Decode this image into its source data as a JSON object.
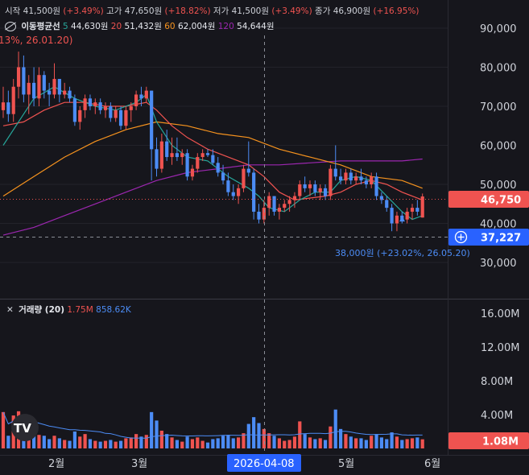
{
  "ohlc_legend": [
    {
      "label": "시작",
      "value": "41,500원",
      "change": "(+3.49%)"
    },
    {
      "label": "고가",
      "value": "47,650원",
      "change": "(+18.82%)"
    },
    {
      "label": "저가",
      "value": "41,500원",
      "change": "(+3.49%)"
    },
    {
      "label": "종가",
      "value": "46,900원",
      "change": "(+16.95%)"
    }
  ],
  "ma_legend": {
    "title": "이동평균선",
    "items": [
      {
        "period": "5",
        "value": "44,630원",
        "color": "#26a69a"
      },
      {
        "period": "20",
        "value": "51,432원",
        "color": "#ef5350"
      },
      {
        "period": "60",
        "value": "62,004원",
        "color": "#f7931e"
      },
      {
        "period": "120",
        "value": "54,644원",
        "color": "#9c27b0"
      }
    ]
  },
  "high_annotation": "13%, 26.01.20)",
  "low_annotation": "38,000원 (+23.02%, 26.05.20)",
  "price_axis": {
    "ticks": [
      "90,000",
      "80,000",
      "70,000",
      "60,000",
      "50,000",
      "40,000",
      "30,000"
    ],
    "min": 20000,
    "max": 95000
  },
  "current_price_tag": {
    "value": "46,750",
    "price": 46750,
    "color": "#ef5350"
  },
  "crosshair_price_tag": {
    "value": "37,227",
    "price": 37227,
    "color": "#2962ff"
  },
  "volume_panel": {
    "title": "거래량 (20)",
    "value1": "1.75M",
    "value2": "858.62K",
    "ticks": [
      "16.00M",
      "12.00M",
      "8.00M",
      "4.00M"
    ],
    "current_tag": "1.08M",
    "max": 17500000
  },
  "time_axis": {
    "labels": [
      "2월",
      "3월",
      "5월",
      "6월"
    ],
    "crosshair_date": "2026-04-08"
  },
  "colors": {
    "up": "#ef5350",
    "down": "#4c8cf5",
    "ma5": "#26a69a",
    "ma20": "#ef5350",
    "ma60": "#f7931e",
    "ma120": "#9c27b0",
    "background": "#16161c",
    "volume_ma": "#4c8cf5"
  },
  "chart_data": {
    "type": "candlestick",
    "price_ylim": [
      20000,
      95000
    ],
    "volume_ylim": [
      0,
      17500000
    ],
    "candles": [
      {
        "o": 69000,
        "h": 75000,
        "l": 67000,
        "c": 71000,
        "v": 4300000
      },
      {
        "o": 71000,
        "h": 74000,
        "l": 66000,
        "c": 68000,
        "v": 1500000
      },
      {
        "o": 68000,
        "h": 77000,
        "l": 66000,
        "c": 75000,
        "v": 3900000
      },
      {
        "o": 75000,
        "h": 84000,
        "l": 72000,
        "c": 80000,
        "v": 4400000
      },
      {
        "o": 80000,
        "h": 83000,
        "l": 71000,
        "c": 73000,
        "v": 3300000
      },
      {
        "o": 73000,
        "h": 78000,
        "l": 68000,
        "c": 76000,
        "v": 3100000
      },
      {
        "o": 76000,
        "h": 80000,
        "l": 70000,
        "c": 72000,
        "v": 1800000
      },
      {
        "o": 72000,
        "h": 80000,
        "l": 70000,
        "c": 78000,
        "v": 1600000
      },
      {
        "o": 78000,
        "h": 79000,
        "l": 72000,
        "c": 74000,
        "v": 1500000
      },
      {
        "o": 74000,
        "h": 76000,
        "l": 70000,
        "c": 73000,
        "v": 1100000
      },
      {
        "o": 73000,
        "h": 81000,
        "l": 72000,
        "c": 77000,
        "v": 1500000
      },
      {
        "o": 77000,
        "h": 77000,
        "l": 71000,
        "c": 73000,
        "v": 1200000
      },
      {
        "o": 73000,
        "h": 76000,
        "l": 72000,
        "c": 74000,
        "v": 1000000
      },
      {
        "o": 74000,
        "h": 75000,
        "l": 71000,
        "c": 72000,
        "v": 900000
      },
      {
        "o": 72000,
        "h": 73000,
        "l": 65000,
        "c": 66000,
        "v": 2000000
      },
      {
        "o": 66000,
        "h": 70000,
        "l": 64000,
        "c": 69000,
        "v": 1400000
      },
      {
        "o": 69000,
        "h": 73000,
        "l": 67000,
        "c": 72000,
        "v": 1700000
      },
      {
        "o": 72000,
        "h": 73000,
        "l": 69000,
        "c": 70000,
        "v": 1100000
      },
      {
        "o": 70000,
        "h": 72000,
        "l": 68000,
        "c": 71000,
        "v": 900000
      },
      {
        "o": 71000,
        "h": 72000,
        "l": 68000,
        "c": 69000,
        "v": 800000
      },
      {
        "o": 69000,
        "h": 71000,
        "l": 67000,
        "c": 70000,
        "v": 900000
      },
      {
        "o": 70000,
        "h": 71000,
        "l": 66000,
        "c": 67000,
        "v": 1000000
      },
      {
        "o": 67000,
        "h": 70000,
        "l": 66000,
        "c": 69000,
        "v": 800000
      },
      {
        "o": 69000,
        "h": 70000,
        "l": 64000,
        "c": 65000,
        "v": 900000
      },
      {
        "o": 65000,
        "h": 70000,
        "l": 64000,
        "c": 69000,
        "v": 1200000
      },
      {
        "o": 69000,
        "h": 71000,
        "l": 66000,
        "c": 70000,
        "v": 1300000
      },
      {
        "o": 70000,
        "h": 74000,
        "l": 69000,
        "c": 73000,
        "v": 1700000
      },
      {
        "o": 73000,
        "h": 75000,
        "l": 70000,
        "c": 72000,
        "v": 1400000
      },
      {
        "o": 72000,
        "h": 75000,
        "l": 71000,
        "c": 74000,
        "v": 1600000
      },
      {
        "o": 74000,
        "h": 74000,
        "l": 51000,
        "c": 59000,
        "v": 4300000
      },
      {
        "o": 59000,
        "h": 62000,
        "l": 52000,
        "c": 54000,
        "v": 3300000
      },
      {
        "o": 54000,
        "h": 63000,
        "l": 53000,
        "c": 61000,
        "v": 2100000
      },
      {
        "o": 61000,
        "h": 64000,
        "l": 56000,
        "c": 57000,
        "v": 1700000
      },
      {
        "o": 57000,
        "h": 62000,
        "l": 55000,
        "c": 58000,
        "v": 1300000
      },
      {
        "o": 58000,
        "h": 62000,
        "l": 56000,
        "c": 57000,
        "v": 1000000
      },
      {
        "o": 57000,
        "h": 59000,
        "l": 55000,
        "c": 58000,
        "v": 800000
      },
      {
        "o": 58000,
        "h": 59000,
        "l": 51000,
        "c": 52000,
        "v": 1400000
      },
      {
        "o": 52000,
        "h": 55000,
        "l": 51000,
        "c": 54000,
        "v": 1100000
      },
      {
        "o": 54000,
        "h": 58000,
        "l": 53000,
        "c": 57000,
        "v": 1300000
      },
      {
        "o": 57000,
        "h": 59000,
        "l": 56000,
        "c": 58000,
        "v": 900000
      },
      {
        "o": 58000,
        "h": 59000,
        "l": 57000,
        "c": 57500,
        "v": 700000
      },
      {
        "o": 57500,
        "h": 59000,
        "l": 55000,
        "c": 55500,
        "v": 1100000
      },
      {
        "o": 55500,
        "h": 57000,
        "l": 52000,
        "c": 53000,
        "v": 1200000
      },
      {
        "o": 53000,
        "h": 55000,
        "l": 50000,
        "c": 51000,
        "v": 1500000
      },
      {
        "o": 51000,
        "h": 53000,
        "l": 47000,
        "c": 48000,
        "v": 1600000
      },
      {
        "o": 48000,
        "h": 50000,
        "l": 46000,
        "c": 47000,
        "v": 1200000
      },
      {
        "o": 47000,
        "h": 50000,
        "l": 45000,
        "c": 49000,
        "v": 1300000
      },
      {
        "o": 49000,
        "h": 55000,
        "l": 48000,
        "c": 54000,
        "v": 1800000
      },
      {
        "o": 54000,
        "h": 61000,
        "l": 52000,
        "c": 53000,
        "v": 2900000
      },
      {
        "o": 53000,
        "h": 54000,
        "l": 41000,
        "c": 43000,
        "v": 3700000
      },
      {
        "o": 43000,
        "h": 45000,
        "l": 40000,
        "c": 41000,
        "v": 3000000
      },
      {
        "o": 41000,
        "h": 46000,
        "l": 40000,
        "c": 44000,
        "v": 2300000
      },
      {
        "o": 44000,
        "h": 48000,
        "l": 42000,
        "c": 47000,
        "v": 1800000
      },
      {
        "o": 47000,
        "h": 47000,
        "l": 42000,
        "c": 43000,
        "v": 1500000
      },
      {
        "o": 43000,
        "h": 45000,
        "l": 41000,
        "c": 44000,
        "v": 1200000
      },
      {
        "o": 44000,
        "h": 46000,
        "l": 43000,
        "c": 45000,
        "v": 900000
      },
      {
        "o": 45000,
        "h": 47000,
        "l": 43000,
        "c": 46000,
        "v": 1000000
      },
      {
        "o": 46000,
        "h": 48000,
        "l": 44000,
        "c": 47000,
        "v": 1400000
      },
      {
        "o": 47000,
        "h": 51000,
        "l": 46000,
        "c": 50000,
        "v": 3200000
      },
      {
        "o": 50000,
        "h": 52000,
        "l": 48000,
        "c": 49000,
        "v": 1700000
      },
      {
        "o": 49000,
        "h": 51000,
        "l": 47000,
        "c": 50000,
        "v": 1300000
      },
      {
        "o": 50000,
        "h": 51000,
        "l": 47000,
        "c": 48000,
        "v": 1100000
      },
      {
        "o": 48000,
        "h": 50000,
        "l": 46000,
        "c": 49000,
        "v": 1200000
      },
      {
        "o": 49000,
        "h": 50000,
        "l": 46000,
        "c": 47000,
        "v": 1000000
      },
      {
        "o": 47000,
        "h": 55000,
        "l": 46000,
        "c": 54000,
        "v": 2600000
      },
      {
        "o": 54000,
        "h": 60000,
        "l": 51000,
        "c": 52000,
        "v": 4600000
      },
      {
        "o": 52000,
        "h": 54000,
        "l": 50000,
        "c": 51000,
        "v": 2300000
      },
      {
        "o": 51000,
        "h": 54000,
        "l": 50000,
        "c": 53000,
        "v": 1700000
      },
      {
        "o": 53000,
        "h": 54000,
        "l": 50000,
        "c": 51000,
        "v": 1400000
      },
      {
        "o": 51000,
        "h": 53000,
        "l": 50000,
        "c": 52000,
        "v": 1200000
      },
      {
        "o": 52000,
        "h": 54000,
        "l": 50000,
        "c": 51000,
        "v": 1200000
      },
      {
        "o": 51000,
        "h": 52000,
        "l": 49000,
        "c": 50000,
        "v": 1000000
      },
      {
        "o": 50000,
        "h": 53000,
        "l": 49000,
        "c": 52000,
        "v": 1500000
      },
      {
        "o": 52000,
        "h": 53000,
        "l": 46000,
        "c": 47000,
        "v": 1700000
      },
      {
        "o": 47000,
        "h": 48000,
        "l": 45000,
        "c": 46000,
        "v": 1300000
      },
      {
        "o": 46000,
        "h": 47000,
        "l": 43000,
        "c": 44000,
        "v": 1100000
      },
      {
        "o": 44000,
        "h": 45000,
        "l": 38000,
        "c": 40000,
        "v": 1900000
      },
      {
        "o": 40000,
        "h": 43000,
        "l": 38000,
        "c": 42000,
        "v": 1400000
      },
      {
        "o": 42000,
        "h": 43000,
        "l": 40000,
        "c": 41000,
        "v": 1000000
      },
      {
        "o": 41000,
        "h": 44000,
        "l": 40000,
        "c": 43000,
        "v": 1100000
      },
      {
        "o": 43000,
        "h": 45000,
        "l": 41000,
        "c": 44000,
        "v": 1200000
      },
      {
        "o": 44000,
        "h": 46000,
        "l": 42000,
        "c": 43000,
        "v": 1300000
      },
      {
        "o": 41500,
        "h": 47650,
        "l": 41500,
        "c": 46900,
        "v": 1080000
      }
    ],
    "ma5": [
      [
        0,
        60000
      ],
      [
        3,
        66000
      ],
      [
        6,
        72000
      ],
      [
        10,
        75000
      ],
      [
        14,
        72000
      ],
      [
        18,
        70000
      ],
      [
        22,
        69000
      ],
      [
        26,
        71000
      ],
      [
        28,
        73000
      ],
      [
        30,
        66000
      ],
      [
        33,
        60000
      ],
      [
        36,
        57000
      ],
      [
        40,
        56000
      ],
      [
        44,
        52000
      ],
      [
        48,
        49000
      ],
      [
        50,
        47000
      ],
      [
        52,
        44000
      ],
      [
        55,
        43000
      ],
      [
        58,
        46000
      ],
      [
        61,
        48000
      ],
      [
        64,
        48000
      ],
      [
        66,
        51000
      ],
      [
        69,
        52000
      ],
      [
        72,
        51000
      ],
      [
        75,
        47000
      ],
      [
        78,
        43000
      ],
      [
        80,
        41000
      ],
      [
        82,
        42000
      ]
    ],
    "ma20": [
      [
        0,
        65000
      ],
      [
        4,
        66000
      ],
      [
        8,
        69000
      ],
      [
        12,
        71000
      ],
      [
        16,
        71000
      ],
      [
        20,
        70000
      ],
      [
        24,
        70000
      ],
      [
        28,
        71000
      ],
      [
        30,
        69000
      ],
      [
        33,
        65000
      ],
      [
        36,
        62000
      ],
      [
        40,
        59000
      ],
      [
        44,
        57000
      ],
      [
        48,
        55000
      ],
      [
        51,
        52000
      ],
      [
        54,
        48000
      ],
      [
        57,
        46000
      ],
      [
        60,
        46500
      ],
      [
        63,
        47000
      ],
      [
        66,
        48000
      ],
      [
        69,
        50000
      ],
      [
        72,
        51000
      ],
      [
        75,
        50000
      ],
      [
        78,
        48000
      ],
      [
        80,
        47000
      ],
      [
        82,
        46000
      ]
    ],
    "ma60": [
      [
        0,
        47000
      ],
      [
        6,
        52000
      ],
      [
        12,
        57000
      ],
      [
        18,
        61000
      ],
      [
        24,
        64000
      ],
      [
        30,
        66000
      ],
      [
        36,
        65000
      ],
      [
        42,
        63000
      ],
      [
        48,
        62000
      ],
      [
        54,
        59000
      ],
      [
        60,
        57000
      ],
      [
        66,
        55000
      ],
      [
        72,
        52000
      ],
      [
        78,
        51000
      ],
      [
        82,
        49000
      ]
    ],
    "ma120": [
      [
        0,
        37000
      ],
      [
        6,
        39000
      ],
      [
        12,
        42000
      ],
      [
        18,
        45000
      ],
      [
        24,
        48000
      ],
      [
        30,
        51000
      ],
      [
        36,
        53000
      ],
      [
        42,
        54000
      ],
      [
        48,
        55000
      ],
      [
        54,
        55000
      ],
      [
        60,
        55500
      ],
      [
        66,
        56000
      ],
      [
        72,
        56000
      ],
      [
        78,
        56000
      ],
      [
        82,
        56500
      ]
    ]
  }
}
